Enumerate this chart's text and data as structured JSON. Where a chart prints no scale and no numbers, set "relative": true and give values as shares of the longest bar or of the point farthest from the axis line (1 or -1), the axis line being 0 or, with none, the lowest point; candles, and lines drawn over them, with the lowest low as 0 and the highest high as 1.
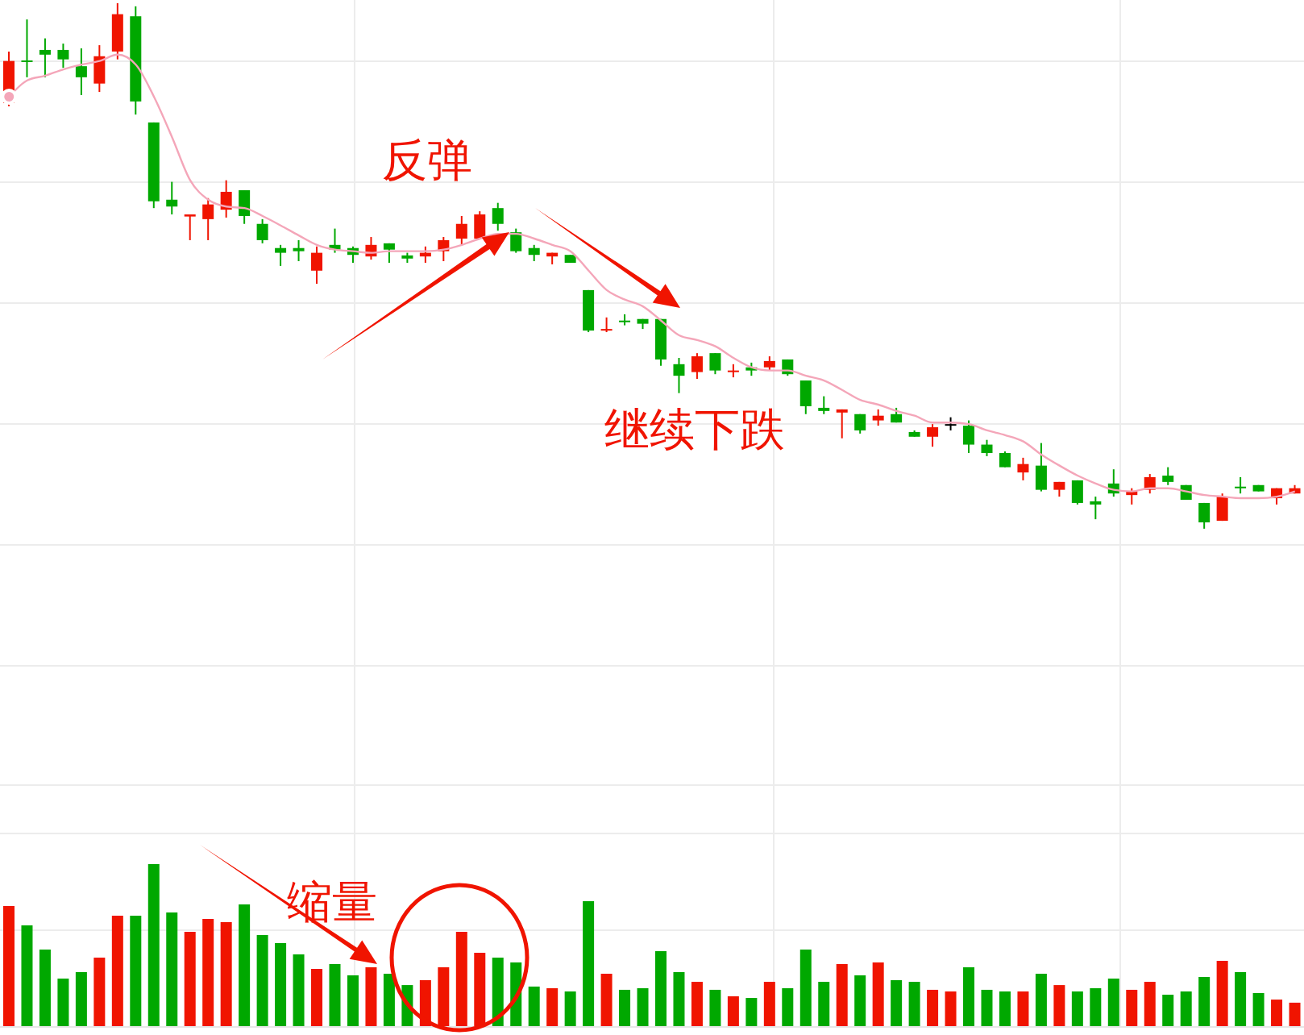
{
  "chart_data": [
    {
      "type": "candlestick",
      "relative": true,
      "grid": true,
      "tick_labels": false,
      "categories": [
        null,
        null,
        null,
        null,
        null,
        null,
        null,
        null,
        null,
        null,
        null,
        null,
        null,
        null,
        null,
        null,
        null,
        null,
        null,
        null,
        null,
        null,
        null,
        null,
        null,
        null,
        null,
        null,
        null,
        null,
        null,
        null,
        null,
        null,
        null,
        null,
        null,
        null,
        null,
        null,
        null,
        null,
        null,
        null,
        null,
        null,
        null,
        null,
        null,
        null,
        null,
        null,
        null,
        null,
        null,
        null,
        null,
        null,
        null,
        null,
        null,
        null,
        null,
        null,
        null,
        null,
        null,
        null,
        null,
        null,
        null,
        null
      ],
      "ohlc": [
        [
          0.81,
          0.908,
          0.804,
          0.89
        ],
        [
          0.891,
          0.969,
          0.859,
          0.888
        ],
        [
          0.911,
          0.933,
          0.859,
          0.902
        ],
        [
          0.911,
          0.923,
          0.877,
          0.893
        ],
        [
          0.88,
          0.914,
          0.825,
          0.859
        ],
        [
          0.847,
          0.92,
          0.831,
          0.899
        ],
        [
          0.908,
          1,
          0.893,
          0.979
        ],
        [
          0.975,
          0.994,
          0.788,
          0.813
        ],
        [
          0.773,
          0.773,
          0.61,
          0.623
        ],
        [
          0.626,
          0.66,
          0.598,
          0.613
        ],
        [
          0.594,
          0.598,
          0.549,
          0.598
        ],
        [
          0.589,
          0.629,
          0.549,
          0.617
        ],
        [
          0.607,
          0.663,
          0.592,
          0.641
        ],
        [
          0.644,
          0.644,
          0.58,
          0.595
        ],
        [
          0.58,
          0.589,
          0.543,
          0.549
        ],
        [
          0.534,
          0.54,
          0.5,
          0.525
        ],
        [
          0.534,
          0.549,
          0.509,
          0.528
        ],
        [
          0.491,
          0.537,
          0.466,
          0.525
        ],
        [
          0.54,
          0.571,
          0.525,
          0.531
        ],
        [
          0.534,
          0.537,
          0.506,
          0.521
        ],
        [
          0.518,
          0.555,
          0.512,
          0.54
        ],
        [
          0.543,
          0.543,
          0.506,
          0.531
        ],
        [
          0.52,
          0.525,
          0.506,
          0.514
        ],
        [
          0.518,
          0.537,
          0.506,
          0.525
        ],
        [
          0.528,
          0.555,
          0.509,
          0.549
        ],
        [
          0.552,
          0.595,
          0.54,
          0.58
        ],
        [
          0.552,
          0.604,
          0.552,
          0.598
        ],
        [
          0.61,
          0.62,
          0.567,
          0.58
        ],
        [
          0.564,
          0.571,
          0.525,
          0.528
        ],
        [
          0.534,
          0.54,
          0.509,
          0.521
        ],
        [
          0.518,
          0.525,
          0.503,
          0.525
        ],
        [
          0.521,
          0.521,
          0.506,
          0.506
        ],
        [
          0.454,
          0.454,
          0.374,
          0.377
        ],
        [
          0.377,
          0.402,
          0.374,
          0.38
        ],
        [
          0.396,
          0.408,
          0.387,
          0.393
        ],
        [
          0.399,
          0.399,
          0.38,
          0.39
        ],
        [
          0.399,
          0.399,
          0.31,
          0.322
        ],
        [
          0.313,
          0.325,
          0.258,
          0.291
        ],
        [
          0.298,
          0.334,
          0.285,
          0.328
        ],
        [
          0.334,
          0.334,
          0.294,
          0.301
        ],
        [
          0.298,
          0.313,
          0.288,
          0.301
        ],
        [
          0.307,
          0.316,
          0.291,
          0.301
        ],
        [
          0.307,
          0.328,
          0.301,
          0.319
        ],
        [
          0.322,
          0.322,
          0.291,
          0.294
        ],
        [
          0.282,
          0.282,
          0.218,
          0.233
        ],
        [
          0.23,
          0.252,
          0.218,
          0.224
        ],
        [
          0.221,
          0.227,
          0.172,
          0.227
        ],
        [
          0.218,
          0.218,
          0.181,
          0.187
        ],
        [
          0.206,
          0.227,
          0.196,
          0.215
        ],
        [
          0.218,
          0.23,
          0.202,
          0.202
        ],
        [
          0.184,
          0.187,
          0.175,
          0.175
        ],
        [
          0.175,
          0.199,
          0.156,
          0.193
        ],
        [
          0.199,
          0.212,
          0.187,
          0.199
        ],
        [
          0.196,
          0.206,
          0.144,
          0.16
        ],
        [
          0.16,
          0.169,
          0.138,
          0.144
        ],
        [
          0.144,
          0.147,
          0.117,
          0.117
        ],
        [
          0.107,
          0.135,
          0.092,
          0.123
        ],
        [
          0.12,
          0.163,
          0.071,
          0.074
        ],
        [
          0.074,
          0.089,
          0.061,
          0.089
        ],
        [
          0.092,
          0.092,
          0.046,
          0.049
        ],
        [
          0.052,
          0.061,
          0.018,
          0.046
        ],
        [
          0.086,
          0.113,
          0.061,
          0.067
        ],
        [
          0.064,
          0.077,
          0.046,
          0.071
        ],
        [
          0.074,
          0.104,
          0.067,
          0.098
        ],
        [
          0.101,
          0.117,
          0.083,
          0.089
        ],
        [
          0.083,
          0.083,
          0.055,
          0.055
        ],
        [
          0.049,
          0.049,
          0,
          0.012
        ],
        [
          0.015,
          0.067,
          0.015,
          0.061
        ],
        [
          0.08,
          0.098,
          0.067,
          0.077
        ],
        [
          0.083,
          0.083,
          0.071,
          0.071
        ],
        [
          0.058,
          0.077,
          0.046,
          0.077
        ],
        [
          0.067,
          0.083,
          0.067,
          0.077
        ]
      ],
      "colors": [
        "#f01400",
        "#00a800",
        "#00a800",
        "#00a800",
        "#00a800",
        "#f01400",
        "#f01400",
        "#00a800",
        "#00a800",
        "#00a800",
        "#f01400",
        "#f01400",
        "#f01400",
        "#00a800",
        "#00a800",
        "#00a800",
        "#00a800",
        "#f01400",
        "#00a800",
        "#00a800",
        "#f01400",
        "#00a800",
        "#00a800",
        "#f01400",
        "#f01400",
        "#f01400",
        "#f01400",
        "#00a800",
        "#00a800",
        "#00a800",
        "#f01400",
        "#00a800",
        "#00a800",
        "#f01400",
        "#00a800",
        "#00a800",
        "#00a800",
        "#00a800",
        "#f01400",
        "#00a800",
        "#f01400",
        "#00a800",
        "#f01400",
        "#00a800",
        "#00a800",
        "#00a800",
        "#f01400",
        "#00a800",
        "#f01400",
        "#00a800",
        "#00a800",
        "#f01400",
        "#000000",
        "#00a800",
        "#00a800",
        "#00a800",
        "#f01400",
        "#00a800",
        "#f01400",
        "#00a800",
        "#00a800",
        "#00a800",
        "#f01400",
        "#f01400",
        "#00a800",
        "#00a800",
        "#00a800",
        "#f01400",
        "#00a800",
        "#00a800",
        "#f01400",
        "#f01400"
      ],
      "series": [
        {
          "type": "line",
          "color": "#f4a6b9",
          "values": [
            0.822,
            0.853,
            0.862,
            0.874,
            0.883,
            0.89,
            0.902,
            0.883,
            0.822,
            0.745,
            0.663,
            0.626,
            0.613,
            0.61,
            0.595,
            0.577,
            0.558,
            0.54,
            0.531,
            0.528,
            0.525,
            0.528,
            0.528,
            0.528,
            0.531,
            0.54,
            0.552,
            0.561,
            0.561,
            0.552,
            0.54,
            0.528,
            0.491,
            0.454,
            0.436,
            0.423,
            0.396,
            0.368,
            0.359,
            0.347,
            0.325,
            0.307,
            0.301,
            0.301,
            0.291,
            0.282,
            0.264,
            0.245,
            0.236,
            0.224,
            0.215,
            0.202,
            0.202,
            0.199,
            0.187,
            0.178,
            0.166,
            0.141,
            0.12,
            0.101,
            0.086,
            0.074,
            0.071,
            0.077,
            0.077,
            0.071,
            0.064,
            0.061,
            0.058,
            0.058,
            0.061,
            0.071
          ]
        }
      ],
      "annotations": [
        "反弹",
        "继续下跌"
      ]
    },
    {
      "type": "bar",
      "relative": true,
      "grid": true,
      "tick_labels": false,
      "categories": [
        null,
        null,
        null,
        null,
        null,
        null,
        null,
        null,
        null,
        null,
        null,
        null,
        null,
        null,
        null,
        null,
        null,
        null,
        null,
        null,
        null,
        null,
        null,
        null,
        null,
        null,
        null,
        null,
        null,
        null,
        null,
        null,
        null,
        null,
        null,
        null,
        null,
        null,
        null,
        null,
        null,
        null,
        null,
        null,
        null,
        null,
        null,
        null,
        null,
        null,
        null,
        null,
        null,
        null,
        null,
        null,
        null,
        null,
        null,
        null,
        null,
        null,
        null,
        null,
        null,
        null,
        null,
        null,
        null,
        null,
        null,
        null
      ],
      "values": [
        0.743,
        0.624,
        0.475,
        0.297,
        0.337,
        0.426,
        0.683,
        0.683,
        1,
        0.703,
        0.584,
        0.663,
        0.644,
        0.752,
        0.564,
        0.515,
        0.446,
        0.356,
        0.386,
        0.317,
        0.366,
        0.327,
        0.257,
        0.287,
        0.366,
        0.584,
        0.455,
        0.426,
        0.396,
        0.248,
        0.238,
        0.218,
        0.772,
        0.327,
        0.228,
        0.238,
        0.465,
        0.337,
        0.277,
        0.228,
        0.188,
        0.178,
        0.277,
        0.238,
        0.475,
        0.277,
        0.386,
        0.317,
        0.396,
        0.287,
        0.277,
        0.228,
        0.218,
        0.366,
        0.228,
        0.218,
        0.218,
        0.327,
        0.257,
        0.218,
        0.238,
        0.297,
        0.228,
        0.277,
        0.198,
        0.218,
        0.307,
        0.406,
        0.337,
        0.208,
        0.168,
        0.149
      ],
      "colors": [
        "#f01400",
        "#00a800",
        "#00a800",
        "#00a800",
        "#00a800",
        "#f01400",
        "#f01400",
        "#00a800",
        "#00a800",
        "#00a800",
        "#f01400",
        "#f01400",
        "#f01400",
        "#00a800",
        "#00a800",
        "#00a800",
        "#00a800",
        "#f01400",
        "#00a800",
        "#00a800",
        "#f01400",
        "#00a800",
        "#00a800",
        "#f01400",
        "#f01400",
        "#f01400",
        "#f01400",
        "#00a800",
        "#00a800",
        "#00a800",
        "#f01400",
        "#00a800",
        "#00a800",
        "#f01400",
        "#00a800",
        "#00a800",
        "#00a800",
        "#00a800",
        "#f01400",
        "#00a800",
        "#f01400",
        "#00a800",
        "#f01400",
        "#00a800",
        "#00a800",
        "#00a800",
        "#f01400",
        "#00a800",
        "#f01400",
        "#00a800",
        "#00a800",
        "#f01400",
        "#f01400",
        "#00a800",
        "#00a800",
        "#00a800",
        "#f01400",
        "#00a800",
        "#f01400",
        "#00a800",
        "#00a800",
        "#00a800",
        "#f01400",
        "#f01400",
        "#00a800",
        "#00a800",
        "#00a800",
        "#f01400",
        "#00a800",
        "#00a800",
        "#f01400",
        "#f01400"
      ],
      "annotations": [
        "缩量"
      ]
    }
  ]
}
